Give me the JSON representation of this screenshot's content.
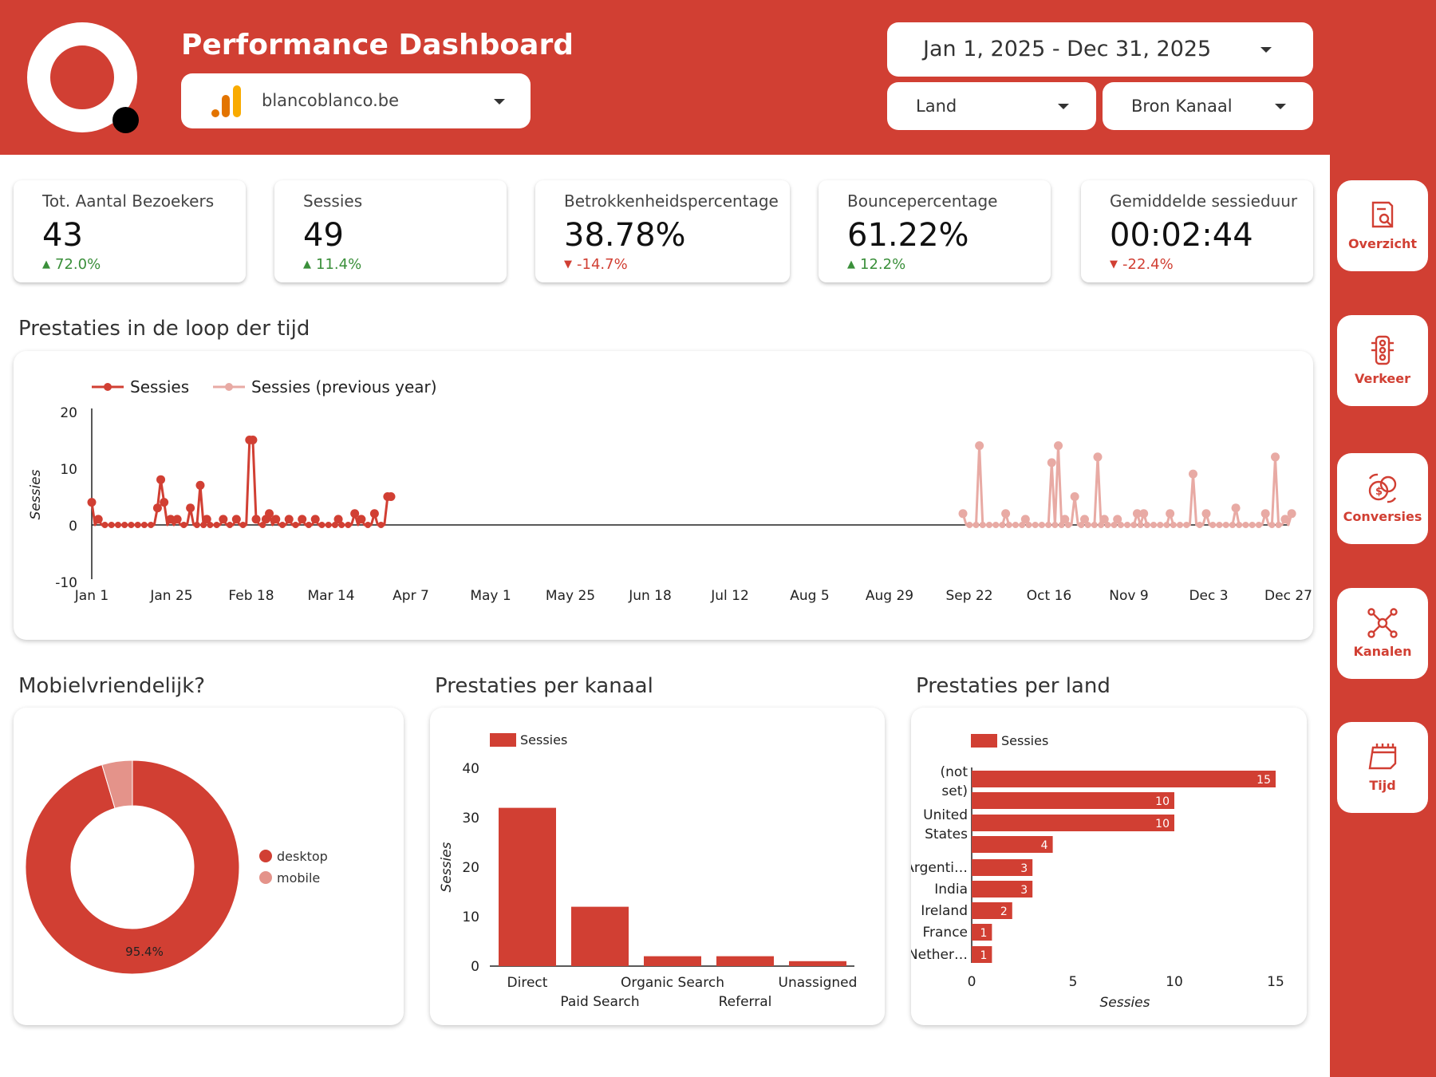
{
  "header": {
    "title": "Performance Dashboard",
    "site": "blancoblanco.be",
    "date_range": "Jan 1, 2025 - Dec 31, 2025",
    "filter_country": "Land",
    "filter_source": "Bron Kanaal"
  },
  "kpis": [
    {
      "label": "Tot. Aantal Bezoekers",
      "value": "43",
      "delta": "72.0%",
      "direction": "up"
    },
    {
      "label": "Sessies",
      "value": "49",
      "delta": "11.4%",
      "direction": "up"
    },
    {
      "label": "Betrokkenheidspercentage",
      "value": "38.78%",
      "delta": "-14.7%",
      "direction": "down"
    },
    {
      "label": "Bouncepercentage",
      "value": "61.22%",
      "delta": "12.2%",
      "direction": "up"
    },
    {
      "label": "Gemiddelde sessieduur",
      "value": "00:02:44",
      "delta": "-22.4%",
      "direction": "down"
    }
  ],
  "sections": {
    "time": "Prestaties in de loop der tijd",
    "mobile": "Mobielvriendelijk?",
    "channel": "Prestaties per kanaal",
    "country": "Prestaties per land"
  },
  "nav": {
    "overview": "Overzicht",
    "traffic": "Verkeer",
    "conversions": "Conversies",
    "channels": "Kanalen",
    "time": "Tijd"
  },
  "colors": {
    "brand": "#d13f33",
    "series_light": "#e8aaa4",
    "up": "#3a8f3a",
    "down": "#d13f33"
  },
  "chart_data": [
    {
      "type": "line",
      "title": "Prestaties in de loop der tijd",
      "ylabel": "Sessies",
      "ylim": [
        -10,
        20
      ],
      "yticks": [
        20,
        10,
        0,
        -10
      ],
      "xticks": [
        "Jan 1",
        "Jan 25",
        "Feb 18",
        "Mar 14",
        "Apr 7",
        "May 1",
        "May 25",
        "Jun 18",
        "Jul 12",
        "Aug 5",
        "Aug 29",
        "Sep 22",
        "Oct 16",
        "Nov 9",
        "Dec 3",
        "Dec 27"
      ],
      "series": [
        {
          "name": "Sessies",
          "days": [
            0,
            2,
            20,
            21,
            22,
            24,
            26,
            30,
            33,
            35,
            40,
            44,
            48,
            49,
            50,
            53,
            54,
            56,
            60,
            64,
            68,
            75,
            80,
            82,
            86,
            90,
            91
          ],
          "values": [
            4,
            1,
            3,
            8,
            4,
            1,
            1,
            3,
            7,
            1,
            1,
            1,
            15,
            15,
            1,
            1,
            2,
            1,
            1,
            1,
            1,
            1,
            2,
            1,
            2,
            5,
            5
          ]
        },
        {
          "name": "Sessies (previous year)",
          "days": [
            265,
            270,
            278,
            284,
            292,
            294,
            296,
            299,
            302,
            306,
            308,
            312,
            318,
            320,
            328,
            335,
            339,
            348,
            357,
            360,
            363,
            365
          ],
          "values": [
            2,
            14,
            2,
            1,
            11,
            14,
            1,
            5,
            1,
            12,
            1,
            1,
            2,
            2,
            2,
            9,
            2,
            3,
            2,
            12,
            1,
            2
          ]
        }
      ]
    },
    {
      "type": "pie",
      "title": "Mobielvriendelijk?",
      "labels": [
        "desktop",
        "mobile"
      ],
      "values": [
        95.4,
        4.6
      ],
      "data_labels": [
        "95.4%",
        ""
      ]
    },
    {
      "type": "bar",
      "title": "Prestaties per kanaal",
      "ylabel": "Sessies",
      "ylim": [
        0,
        40
      ],
      "yticks": [
        40,
        30,
        20,
        10,
        0
      ],
      "categories": [
        "Direct",
        "Paid Search",
        "Organic Search",
        "Referral",
        "Unassigned"
      ],
      "series": [
        {
          "name": "Sessies",
          "values": [
            32,
            12,
            2,
            2,
            1
          ]
        }
      ]
    },
    {
      "type": "bar",
      "orientation": "horizontal",
      "title": "Prestaties per land",
      "xlabel": "Sessies",
      "xlim": [
        0,
        15
      ],
      "xticks": [
        0,
        5,
        10,
        15
      ],
      "categories": [
        "(not set)",
        "",
        "United States",
        "",
        "Argenti…",
        "India",
        "Ireland",
        "France",
        "Nether…"
      ],
      "series": [
        {
          "name": "Sessies",
          "values": [
            15,
            10,
            10,
            4,
            3,
            3,
            2,
            1,
            1
          ]
        }
      ]
    }
  ]
}
